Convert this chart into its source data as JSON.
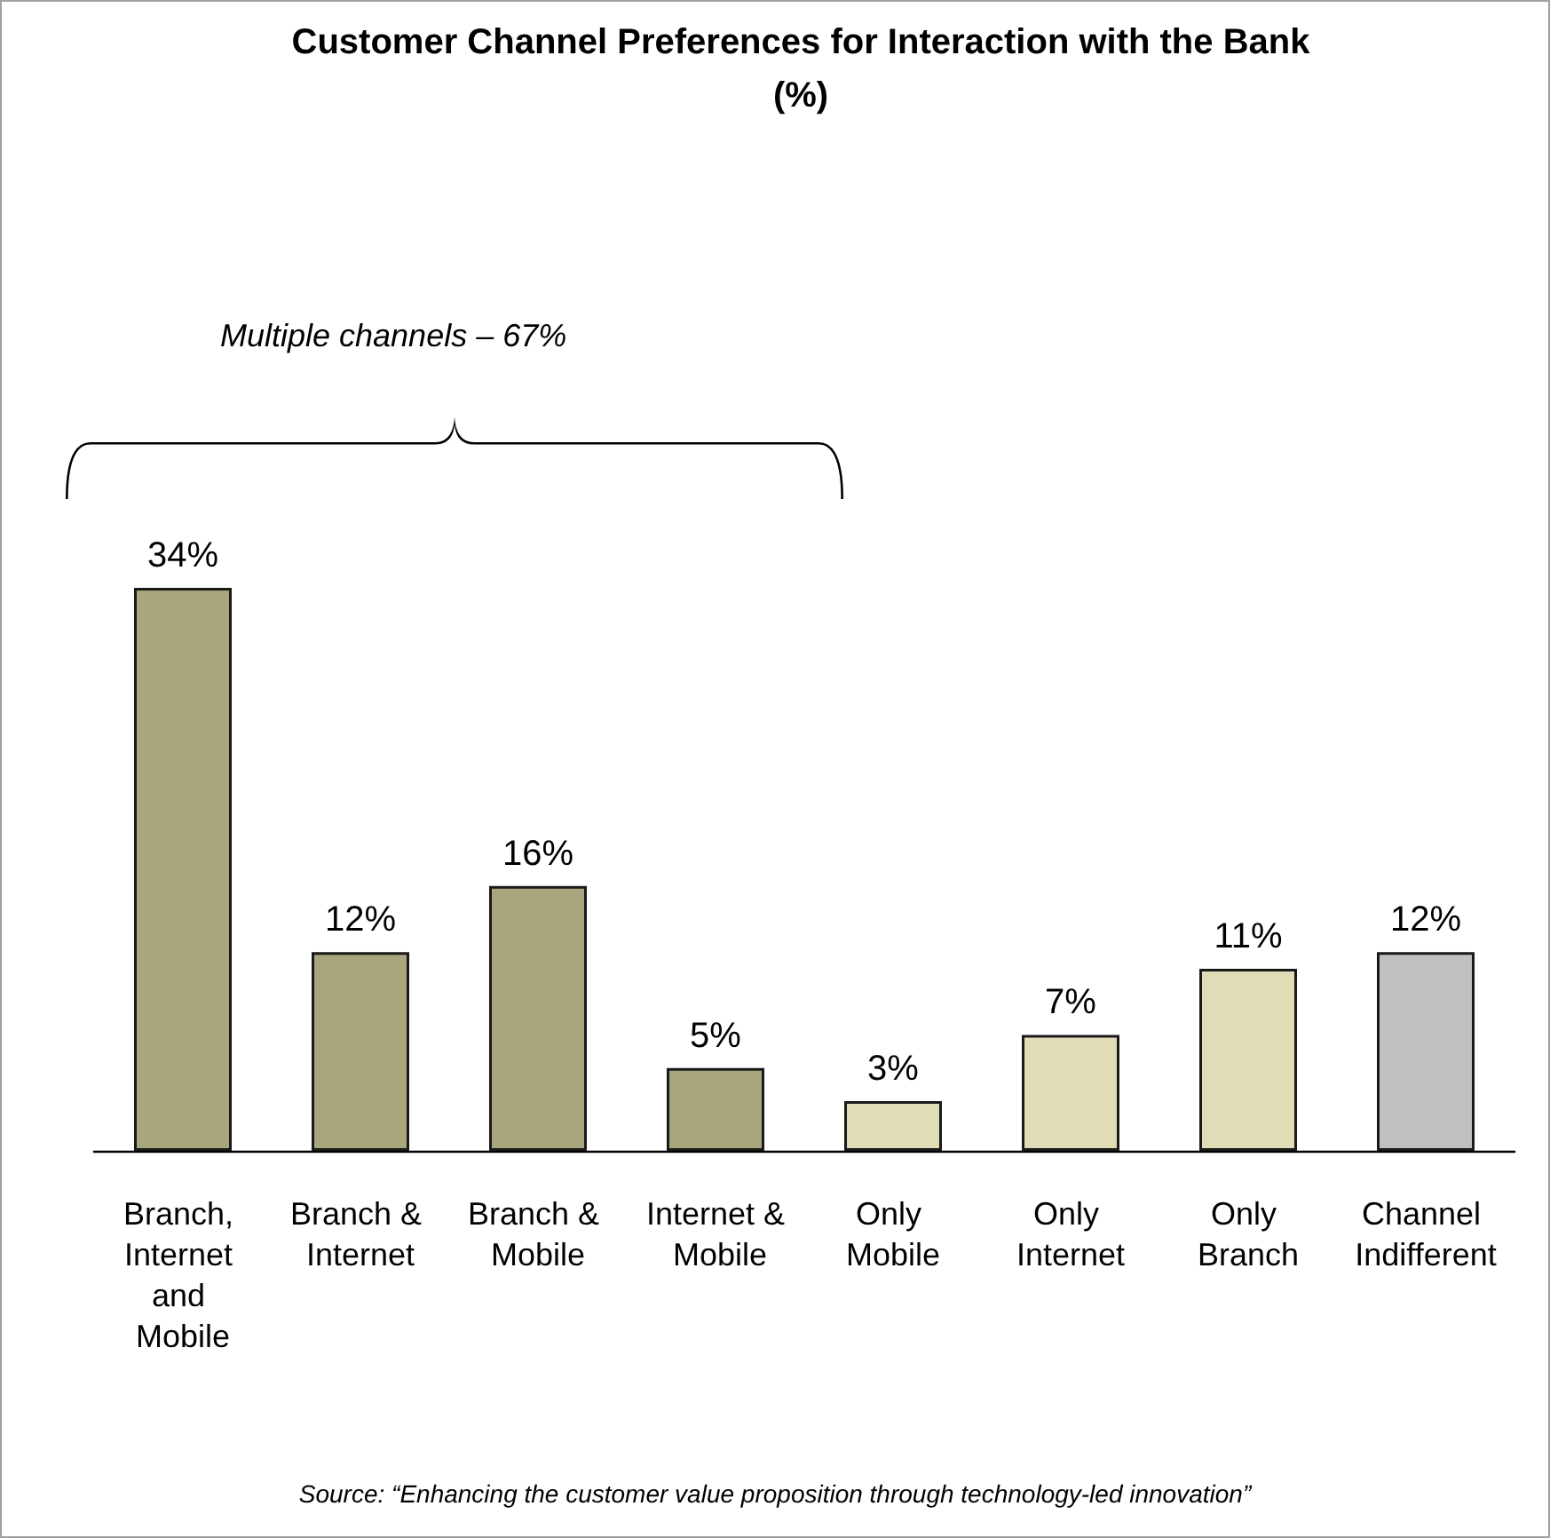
{
  "chart_data": {
    "type": "bar",
    "title": "Customer Channel Preferences for Interaction with the Bank\n(%)",
    "categories": [
      "Branch, Internet and Mobile",
      "Branch & Internet",
      "Branch & Mobile",
      "Internet & Mobile",
      "Only Mobile",
      "Only Internet",
      "Only Branch",
      "Channel Indifferent"
    ],
    "values": [
      34,
      12,
      16,
      5,
      3,
      7,
      11,
      12
    ],
    "colors": [
      "#a9a57c",
      "#a9a57c",
      "#a9a57c",
      "#a9a57c",
      "#e0dcb6",
      "#e0dcb6",
      "#e0dcb6",
      "#c0c0c0"
    ],
    "value_labels": [
      "34%",
      "12%",
      "16%",
      "5%",
      "3%",
      "7%",
      "11%",
      "12%"
    ],
    "annotations": [
      "Multiple channels – 67%",
      "Source: “Enhancing the customer value proposition through technology-led innovation”"
    ]
  }
}
